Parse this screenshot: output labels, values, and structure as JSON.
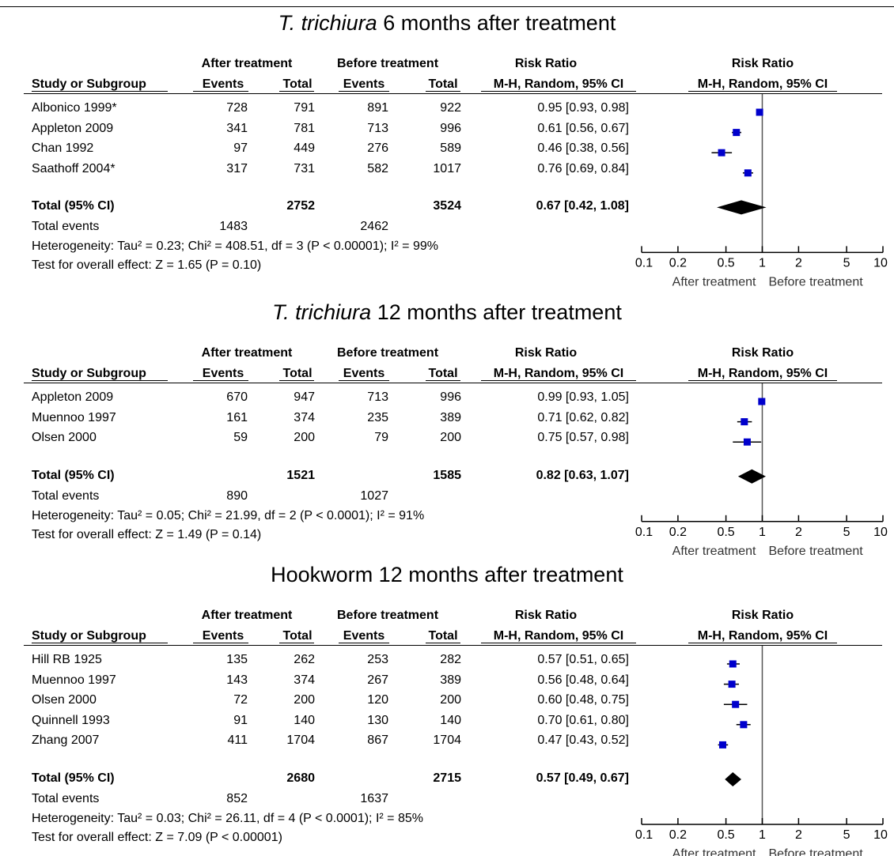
{
  "headers": {
    "study": "Study or Subgroup",
    "after": "After treatment",
    "before": "Before treatment",
    "events": "Events",
    "total": "Total",
    "rr": "Risk Ratio",
    "method": "M-H, Random, 95% CI"
  },
  "axis": {
    "tick_labels": [
      "0.1",
      "0.2",
      "0.5",
      "1",
      "2",
      "5",
      "10"
    ],
    "left_label": "After treatment",
    "right_label": "Before treatment"
  },
  "panels": [
    {
      "title_italic": "T. trichiura",
      "title_rest": " 6 months after treatment",
      "studies": [
        {
          "name": "Albonico 1999*",
          "after_events": "728",
          "after_total": "791",
          "before_events": "891",
          "before_total": "922",
          "ci_text": "0.95 [0.93, 0.98]"
        },
        {
          "name": "Appleton 2009",
          "after_events": "341",
          "after_total": "781",
          "before_events": "713",
          "before_total": "996",
          "ci_text": "0.61 [0.56, 0.67]"
        },
        {
          "name": "Chan 1992",
          "after_events": "97",
          "after_total": "449",
          "before_events": "276",
          "before_total": "589",
          "ci_text": "0.46 [0.38, 0.56]"
        },
        {
          "name": "Saathoff 2004*",
          "after_events": "317",
          "after_total": "731",
          "before_events": "582",
          "before_total": "1017",
          "ci_text": "0.76 [0.69, 0.84]"
        }
      ],
      "total_label": "Total (95% CI)",
      "total_after": "2752",
      "total_before": "3524",
      "total_ci_text": "0.67 [0.42, 1.08]",
      "events_label": "Total events",
      "events_after": "1483",
      "events_before": "2462",
      "heterogeneity": "Heterogeneity: Tau² = 0.23; Chi² = 408.51, df = 3 (P < 0.00001); I² = 99%",
      "overall": "Test for overall effect: Z = 1.65 (P = 0.10)"
    },
    {
      "title_italic": "T. trichiura",
      "title_rest": " 12 months after treatment",
      "studies": [
        {
          "name": "Appleton 2009",
          "after_events": "670",
          "after_total": "947",
          "before_events": "713",
          "before_total": "996",
          "ci_text": "0.99 [0.93, 1.05]"
        },
        {
          "name": "Muennoo 1997",
          "after_events": "161",
          "after_total": "374",
          "before_events": "235",
          "before_total": "389",
          "ci_text": "0.71 [0.62, 0.82]"
        },
        {
          "name": "Olsen 2000",
          "after_events": "59",
          "after_total": "200",
          "before_events": "79",
          "before_total": "200",
          "ci_text": "0.75 [0.57, 0.98]"
        }
      ],
      "total_label": "Total (95% CI)",
      "total_after": "1521",
      "total_before": "1585",
      "total_ci_text": "0.82 [0.63, 1.07]",
      "events_label": "Total events",
      "events_after": "890",
      "events_before": "1027",
      "heterogeneity": "Heterogeneity: Tau² = 0.05; Chi² = 21.99, df = 2 (P < 0.0001); I² = 91%",
      "overall": "Test for overall effect: Z = 1.49 (P = 0.14)"
    },
    {
      "title_italic": "",
      "title_rest": "Hookworm 12 months after treatment",
      "studies": [
        {
          "name": "Hill RB 1925",
          "after_events": "135",
          "after_total": "262",
          "before_events": "253",
          "before_total": "282",
          "ci_text": "0.57 [0.51, 0.65]"
        },
        {
          "name": "Muennoo 1997",
          "after_events": "143",
          "after_total": "374",
          "before_events": "267",
          "before_total": "389",
          "ci_text": "0.56 [0.48, 0.64]"
        },
        {
          "name": "Olsen 2000",
          "after_events": "72",
          "after_total": "200",
          "before_events": "120",
          "before_total": "200",
          "ci_text": "0.60 [0.48, 0.75]"
        },
        {
          "name": "Quinnell  1993",
          "after_events": "91",
          "after_total": "140",
          "before_events": "130",
          "before_total": "140",
          "ci_text": "0.70 [0.61, 0.80]"
        },
        {
          "name": "Zhang  2007",
          "after_events": "411",
          "after_total": "1704",
          "before_events": "867",
          "before_total": "1704",
          "ci_text": "0.47 [0.43, 0.52]"
        }
      ],
      "total_label": "Total (95% CI)",
      "total_after": "2680",
      "total_before": "2715",
      "total_ci_text": "0.57 [0.49, 0.67]",
      "events_label": "Total events",
      "events_after": "852",
      "events_before": "1637",
      "heterogeneity": "Heterogeneity: Tau² = 0.03; Chi² = 26.11, df = 4 (P < 0.0001); I² = 85%",
      "overall": "Test for overall effect: Z = 7.09 (P < 0.00001)"
    }
  ],
  "chart_data": [
    {
      "type": "forest",
      "scale": "log",
      "xlim": [
        0.1,
        10
      ],
      "ticks": [
        0.1,
        0.2,
        0.5,
        1,
        2,
        5,
        10
      ],
      "marker_color": "#0000cc",
      "rows": [
        {
          "study": "Albonico 1999*",
          "rr": 0.95,
          "lo": 0.93,
          "hi": 0.98
        },
        {
          "study": "Appleton 2009",
          "rr": 0.61,
          "lo": 0.56,
          "hi": 0.67
        },
        {
          "study": "Chan 1992",
          "rr": 0.46,
          "lo": 0.38,
          "hi": 0.56
        },
        {
          "study": "Saathoff 2004*",
          "rr": 0.76,
          "lo": 0.69,
          "hi": 0.84
        }
      ],
      "total": {
        "rr": 0.67,
        "lo": 0.42,
        "hi": 1.08
      }
    },
    {
      "type": "forest",
      "scale": "log",
      "xlim": [
        0.1,
        10
      ],
      "ticks": [
        0.1,
        0.2,
        0.5,
        1,
        2,
        5,
        10
      ],
      "marker_color": "#0000cc",
      "rows": [
        {
          "study": "Appleton 2009",
          "rr": 0.99,
          "lo": 0.93,
          "hi": 1.05
        },
        {
          "study": "Muennoo 1997",
          "rr": 0.71,
          "lo": 0.62,
          "hi": 0.82
        },
        {
          "study": "Olsen 2000",
          "rr": 0.75,
          "lo": 0.57,
          "hi": 0.98
        }
      ],
      "total": {
        "rr": 0.82,
        "lo": 0.63,
        "hi": 1.07
      }
    },
    {
      "type": "forest",
      "scale": "log",
      "xlim": [
        0.1,
        10
      ],
      "ticks": [
        0.1,
        0.2,
        0.5,
        1,
        2,
        5,
        10
      ],
      "marker_color": "#0000cc",
      "rows": [
        {
          "study": "Hill RB 1925",
          "rr": 0.57,
          "lo": 0.51,
          "hi": 0.65
        },
        {
          "study": "Muennoo 1997",
          "rr": 0.56,
          "lo": 0.48,
          "hi": 0.64
        },
        {
          "study": "Olsen 2000",
          "rr": 0.6,
          "lo": 0.48,
          "hi": 0.75
        },
        {
          "study": "Quinnell  1993",
          "rr": 0.7,
          "lo": 0.61,
          "hi": 0.8
        },
        {
          "study": "Zhang  2007",
          "rr": 0.47,
          "lo": 0.43,
          "hi": 0.52
        }
      ],
      "total": {
        "rr": 0.57,
        "lo": 0.49,
        "hi": 0.67
      }
    }
  ]
}
